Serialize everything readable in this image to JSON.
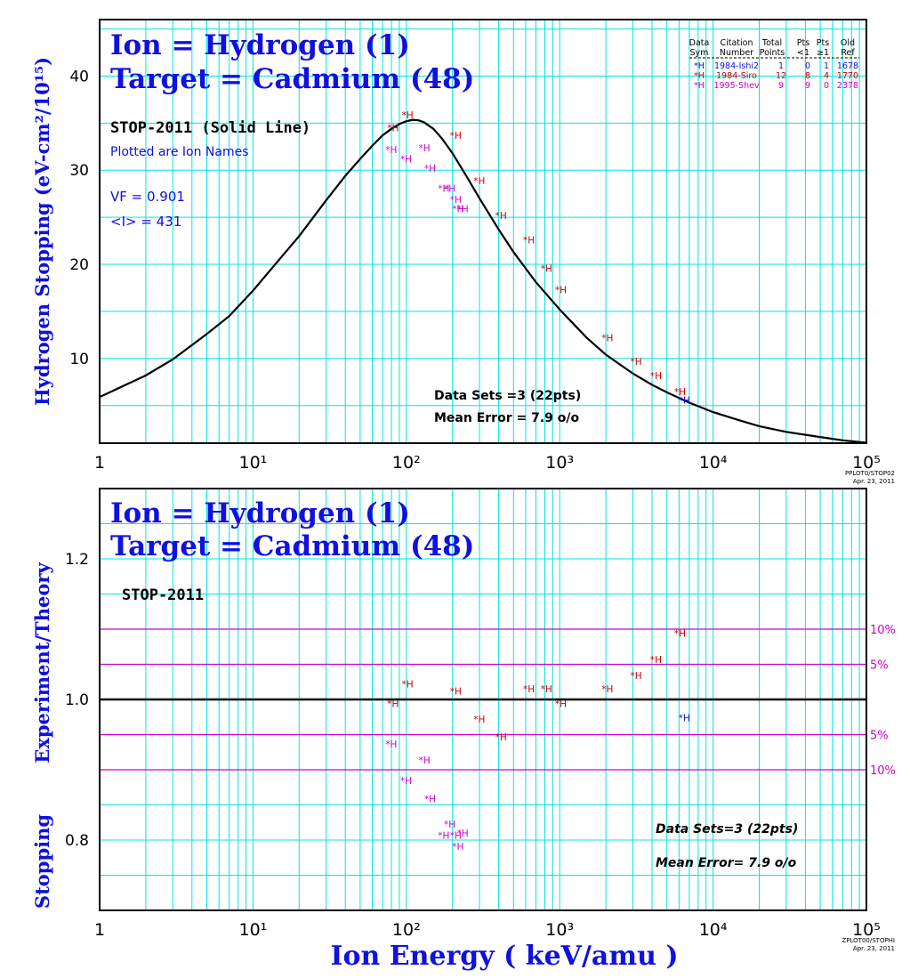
{
  "colors": {
    "grid": "#00e5e5",
    "axis": "#000000",
    "title": "#1010e0",
    "curve": "#000000",
    "band": "#cc00cc"
  },
  "chart_data": [
    {
      "type": "scatter",
      "x_scale": "log",
      "xlim": [
        1,
        100000
      ],
      "ylim": [
        1,
        46
      ],
      "ylabel": "Hydrogen Stopping (eV-cm²/10¹⁵)",
      "x_tick_labels": [
        "1",
        "10¹",
        "10²",
        "10³",
        "10⁴",
        "10⁵"
      ],
      "y_ticks": [
        10,
        20,
        30,
        40
      ],
      "grid": true,
      "title_lines": [
        "Ion = Hydrogen (1)",
        "Target = Cadmium (48)"
      ],
      "annotations": {
        "model": "STOP-2011 (Solid Line)",
        "plotted": "Plotted are Ion Names",
        "vf": "VF = 0.901",
        "mean_i": "<I> = 431",
        "data_sets": "Data Sets =3 (22pts)",
        "mean_error": "Mean Error = 7.9 o/o",
        "footer_code": "PPLOT0/STOP02",
        "footer_date": "Apr. 23, 2011"
      },
      "legend": {
        "position": "top-right",
        "header_top": [
          "Data",
          "Citation",
          "Total",
          "Pts",
          "Pts",
          "Old"
        ],
        "header_bottom": [
          "Sym",
          "Number",
          "Points",
          "<1",
          "≥1",
          "Ref"
        ],
        "rows": [
          {
            "sym": "*H",
            "citation": "1984-Ishi2",
            "total": "1",
            "lt1": "0",
            "ge1": "1",
            "ref": "1678",
            "color": "#1010e0"
          },
          {
            "sym": "*H",
            "citation": "1984-Siro",
            "total": "12",
            "lt1": "8",
            "ge1": "4",
            "ref": "1770",
            "color": "#cc0000"
          },
          {
            "sym": "*H",
            "citation": "1995-Shev",
            "total": "9",
            "lt1": "9",
            "ge1": "0",
            "ref": "2378",
            "color": "#cc00cc"
          }
        ]
      },
      "curve": {
        "x": [
          1,
          2,
          3,
          5,
          7,
          10,
          15,
          20,
          30,
          40,
          50,
          60,
          70,
          80,
          90,
          100,
          110,
          120,
          130,
          150,
          170,
          200,
          250,
          300,
          400,
          500,
          700,
          1000,
          1500,
          2000,
          3000,
          4000,
          5000,
          7000,
          10000,
          15000,
          20000,
          30000,
          50000,
          70000,
          100000
        ],
        "y": [
          5.9,
          8.2,
          9.9,
          12.6,
          14.5,
          17.2,
          20.6,
          23.0,
          26.8,
          29.4,
          31.2,
          32.6,
          33.7,
          34.4,
          34.9,
          35.2,
          35.35,
          35.3,
          35.1,
          34.4,
          33.4,
          31.8,
          29.2,
          27.0,
          23.7,
          21.3,
          18.1,
          15.2,
          12.2,
          10.4,
          8.4,
          7.2,
          6.4,
          5.3,
          4.3,
          3.4,
          2.8,
          2.2,
          1.65,
          1.3,
          1.05
        ]
      },
      "series": [
        {
          "name": "1984-Ishi2",
          "color": "#1010e0",
          "x": [
            6200
          ],
          "y": [
            5.6
          ]
        },
        {
          "name": "1984-Siro",
          "color": "#cc0000",
          "x": [
            78,
            97,
            200,
            285,
            395,
            600,
            780,
            970,
            1950,
            3000,
            4050,
            5800
          ],
          "y": [
            34.5,
            35.9,
            33.7,
            28.9,
            25.2,
            22.6,
            19.6,
            17.3,
            12.2,
            9.7,
            8.2,
            6.5
          ]
        },
        {
          "name": "1995-Shev",
          "color": "#cc00cc",
          "x": [
            76,
            95,
            125,
            136,
            167,
            183,
            200,
            207,
            222
          ],
          "y": [
            32.2,
            31.2,
            32.4,
            30.2,
            28.1,
            28.1,
            26.9,
            25.9,
            25.9
          ]
        }
      ],
      "point_label": "*H"
    },
    {
      "type": "scatter",
      "x_scale": "log",
      "xlim": [
        1,
        100000
      ],
      "ylim": [
        0.7,
        1.3
      ],
      "xlabel": "Ion Energy ( keV/amu )",
      "ylabel_top": "Experiment/Theory",
      "ylabel_bottom": "Stopping",
      "x_tick_labels": [
        "1",
        "10¹",
        "10²",
        "10³",
        "10⁴",
        "10⁵"
      ],
      "y_ticks": [
        0.8,
        1.0,
        1.2
      ],
      "y_tick_labels": [
        "0.8",
        "1.0",
        "1.2"
      ],
      "grid": true,
      "title_lines": [
        "Ion = Hydrogen (1)",
        "Target = Cadmium (48)"
      ],
      "annotations": {
        "model": "STOP-2011",
        "data_sets": "Data Sets=3 (22pts)",
        "mean_error": "Mean Error= 7.9 o/o",
        "footer_code": "ZPLOT00/STOPHI",
        "footer_date": "Apr. 23, 2011"
      },
      "reference_line": 1.0,
      "bands": [
        {
          "y": 1.1,
          "label": "10%"
        },
        {
          "y": 1.05,
          "label": "5%"
        },
        {
          "y": 0.95,
          "label": "5%"
        },
        {
          "y": 0.9,
          "label": "10%"
        }
      ],
      "series": [
        {
          "name": "1984-Ishi2",
          "color": "#1010e0",
          "x": [
            6200
          ],
          "y": [
            0.974
          ]
        },
        {
          "name": "1984-Siro",
          "color": "#cc0000",
          "x": [
            78,
            97,
            200,
            285,
            395,
            600,
            780,
            970,
            1950,
            3000,
            4050,
            5800
          ],
          "y": [
            0.994,
            1.022,
            1.012,
            0.972,
            0.947,
            1.015,
            1.015,
            0.994,
            1.015,
            1.034,
            1.057,
            1.094
          ]
        },
        {
          "name": "1995-Shev",
          "color": "#cc00cc",
          "x": [
            76,
            95,
            125,
            136,
            167,
            183,
            200,
            207,
            222
          ],
          "y": [
            0.937,
            0.885,
            0.914,
            0.859,
            0.807,
            0.823,
            0.807,
            0.791,
            0.81
          ]
        }
      ],
      "point_label": "*H"
    }
  ]
}
